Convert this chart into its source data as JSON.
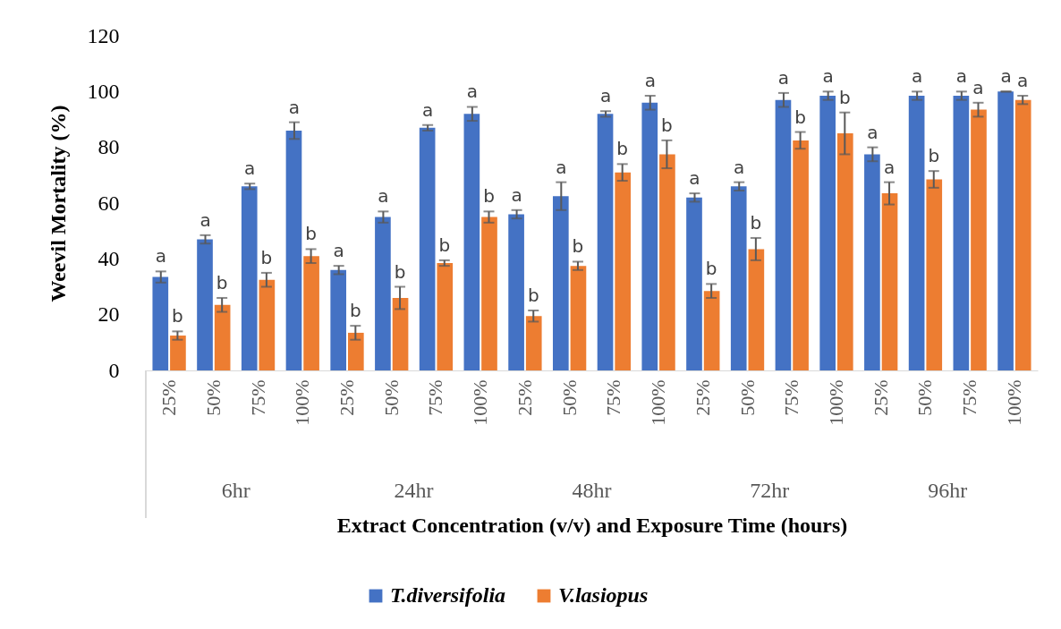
{
  "chart_data": {
    "type": "bar",
    "xlabel": "Extract Concentration (v/v) and Exposure Time (hours)",
    "ylabel": "Weevil Mortality (%)",
    "categories": [
      "25%",
      "50%",
      "75%",
      "100%",
      "25%",
      "50%",
      "75%",
      "100%",
      "25%",
      "50%",
      "75%",
      "100%",
      "25%",
      "50%",
      "75%",
      "100%",
      "25%",
      "50%",
      "75%",
      "100%"
    ],
    "annotations": [
      "6hr",
      "24hr",
      "48hr",
      "72hr",
      "96hr"
    ],
    "series": [
      {
        "name": "T.diversifolia",
        "color": "#4472c4",
        "values": [
          33.5,
          47,
          66,
          86,
          36,
          55,
          87,
          92,
          56,
          62.5,
          92,
          96,
          62,
          66,
          97,
          98.5,
          77.5,
          98.5,
          98.5,
          100
        ],
        "errors": [
          2,
          1.5,
          1,
          3,
          1.5,
          2,
          1,
          2.5,
          1.5,
          5,
          1,
          2.5,
          1.5,
          1.5,
          2.5,
          1.5,
          2.5,
          1.5,
          1.5,
          0
        ],
        "value_labels": [
          "a",
          "a",
          "a",
          "a",
          "a",
          "a",
          "a",
          "a",
          "a",
          "a",
          "a",
          "a",
          "a",
          "a",
          "a",
          "a",
          "a",
          "a",
          "a",
          "a"
        ]
      },
      {
        "name": "V.lasiopus",
        "color": "#ed7d31",
        "values": [
          12.5,
          23.5,
          32.5,
          41,
          13.5,
          26,
          38.5,
          55,
          19.5,
          37.5,
          71,
          77.5,
          28.5,
          43.5,
          82.5,
          85,
          63.5,
          68.5,
          93.5,
          97
        ],
        "errors": [
          1.5,
          2.5,
          2.5,
          2.5,
          2.5,
          4,
          1,
          2,
          2,
          1.5,
          3,
          5,
          2.5,
          4,
          3,
          7.5,
          4,
          3,
          2.5,
          1.5
        ],
        "value_labels": [
          "b",
          "b",
          "b",
          "b",
          "b",
          "b",
          "b",
          "b",
          "b",
          "b",
          "b",
          "b",
          "b",
          "b",
          "b",
          "b",
          "a",
          "b",
          "a",
          "a"
        ]
      }
    ],
    "ylim": [
      0,
      120
    ],
    "yticks": [
      0,
      20,
      40,
      60,
      80,
      100,
      120
    ],
    "grid": false,
    "legend": "bottom"
  }
}
